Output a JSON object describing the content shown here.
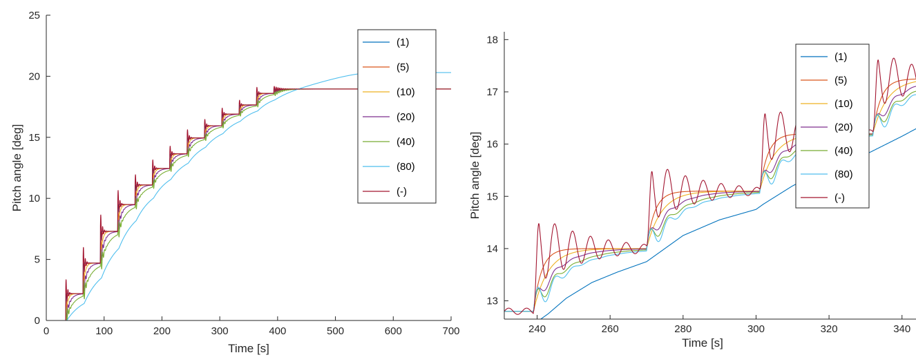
{
  "chart_data": [
    {
      "type": "line",
      "title": "",
      "xlabel": "Time [s]",
      "ylabel": "Pitch angle [deg]",
      "xlim": [
        0,
        700
      ],
      "ylim": [
        0,
        25
      ],
      "xticks": [
        0,
        100,
        200,
        300,
        400,
        500,
        600,
        700
      ],
      "xtick_labels": [
        "0",
        "100",
        "200",
        "300",
        "400",
        "500",
        "600",
        "700"
      ],
      "yticks": [
        0,
        5,
        10,
        15,
        20,
        25
      ],
      "ytick_labels": [
        "0",
        "5",
        "10",
        "15",
        "20",
        "25"
      ],
      "grid": false,
      "legend_position": "top-right",
      "model": {
        "start": 33.5,
        "period": 30,
        "step_count": 13,
        "steps": [
          2.2,
          2.5,
          2.6,
          2.2,
          1.6,
          1.35,
          1.2,
          1.3,
          1.0,
          0.95,
          0.75,
          0.95,
          0.35
        ],
        "final": 20.3,
        "slow_tau": [
          0.3,
          1.5,
          3.2,
          6.5,
          13,
          26,
          0
        ],
        "osc_amp": [
          0,
          0,
          0,
          0.4,
          0.55,
          0.5,
          0.7
        ],
        "osc_decay": [
          1,
          1,
          1,
          3.5,
          3.2,
          3.8,
          2.6
        ],
        "osc_period": 3.2,
        "blue_delay": 2,
        "blue_tau": 30,
        "blue_fill_end": 570
      },
      "series": [
        {
          "name": "(1)",
          "color": "#0072BD"
        },
        {
          "name": "(5)",
          "color": "#D95319"
        },
        {
          "name": "(10)",
          "color": "#EDB120"
        },
        {
          "name": "(20)",
          "color": "#7E2F8E"
        },
        {
          "name": "(40)",
          "color": "#77AC30"
        },
        {
          "name": "(80)",
          "color": "#4DBEEE"
        },
        {
          "name": "(-)",
          "color": "#A2142F"
        }
      ]
    },
    {
      "type": "line",
      "title": "",
      "xlabel": "Time [s]",
      "ylabel": "Pitch angle [deg]",
      "xlim": [
        231,
        348
      ],
      "ylim": [
        12.65,
        18.15
      ],
      "xticks": [
        240,
        260,
        280,
        300,
        320,
        340
      ],
      "xtick_labels": [
        "240",
        "260",
        "280",
        "300",
        "320",
        "340"
      ],
      "yticks": [
        13,
        14,
        15,
        16,
        17,
        18
      ],
      "ytick_labels": [
        "13",
        "14",
        "15",
        "16",
        "17",
        "18"
      ],
      "grid": false,
      "legend_position": "top-right",
      "model": {
        "step_times": [
          239,
          270,
          301,
          332
        ],
        "levels": [
          12.8,
          14.0,
          15.1,
          16.2,
          17.25
        ],
        "slow_tau": [
          0.3,
          2.2,
          4.0,
          6.0,
          8.0,
          9.5,
          0
        ],
        "osc_amp": [
          0,
          0,
          0,
          0.25,
          0.3,
          0.35,
          0.6
        ],
        "osc_decay": [
          1,
          1,
          1,
          3.2,
          3.5,
          4.2,
          14
        ],
        "osc_period": 4.9,
        "blue_points": [
          [
            239,
            12.55
          ],
          [
            243,
            12.75
          ],
          [
            248,
            13.05
          ],
          [
            255,
            13.35
          ],
          [
            262,
            13.55
          ],
          [
            268,
            13.7
          ],
          [
            270,
            13.75
          ],
          [
            272,
            13.85
          ],
          [
            280,
            14.25
          ],
          [
            290,
            14.55
          ],
          [
            300,
            14.75
          ],
          [
            302,
            14.85
          ],
          [
            310,
            15.2
          ],
          [
            320,
            15.55
          ],
          [
            330,
            15.8
          ],
          [
            340,
            16.15
          ],
          [
            348,
            16.45
          ]
        ],
        "osc_bias": 0
      },
      "series": [
        {
          "name": "(1)",
          "color": "#0072BD"
        },
        {
          "name": "(5)",
          "color": "#D95319"
        },
        {
          "name": "(10)",
          "color": "#EDB120"
        },
        {
          "name": "(20)",
          "color": "#7E2F8E"
        },
        {
          "name": "(40)",
          "color": "#77AC30"
        },
        {
          "name": "(80)",
          "color": "#4DBEEE"
        },
        {
          "name": "(-)",
          "color": "#A2142F"
        }
      ]
    }
  ]
}
